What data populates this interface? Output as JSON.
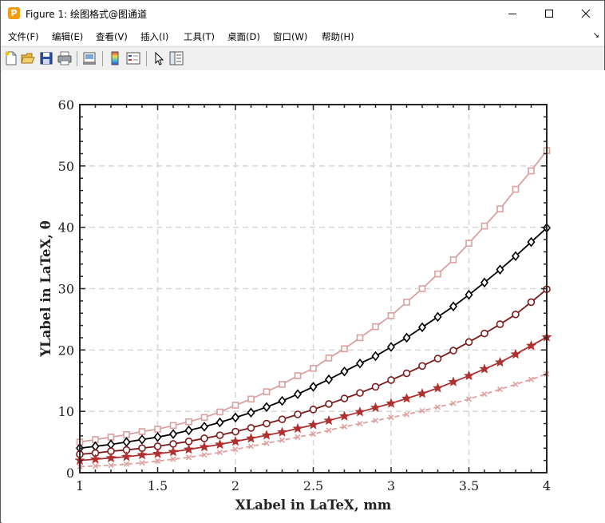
{
  "window": {
    "title": "Figure 1: 绘图格式@图通道",
    "app_icon_letter": "P"
  },
  "menu": {
    "items": [
      "文件(F)",
      "编辑(E)",
      "查看(V)",
      "插入(I)",
      "工具(T)",
      "桌面(D)",
      "窗口(W)",
      "帮助(H)"
    ],
    "overflow_arrow": "↘"
  },
  "toolbar": {
    "icons": [
      "new-figure-icon",
      "open-file-icon",
      "save-icon",
      "print-icon",
      "print-preview-icon",
      "colorbar-icon",
      "legend-icon",
      "pointer-icon",
      "property-editor-icon"
    ]
  },
  "chart_data": {
    "type": "line",
    "xlabel": "XLabel in LaTeX, mm",
    "ylabel": "YLabel in LaTeX, θ",
    "xlim": [
      1,
      4
    ],
    "ylim": [
      0,
      60
    ],
    "xticks": [
      "1",
      "1.5",
      "2",
      "2.5",
      "3",
      "3.5",
      "4"
    ],
    "yticks": [
      "0",
      "10",
      "20",
      "30",
      "40",
      "50",
      "60"
    ],
    "grid": true,
    "x": [
      1.0,
      1.1,
      1.2,
      1.3,
      1.4,
      1.5,
      1.6,
      1.7,
      1.8,
      1.9,
      2.0,
      2.1,
      2.2,
      2.3,
      2.4,
      2.5,
      2.6,
      2.7,
      2.8,
      2.9,
      3.0,
      3.1,
      3.2,
      3.3,
      3.4,
      3.5,
      3.6,
      3.7,
      3.8,
      3.9,
      4.0
    ],
    "series": [
      {
        "color": "#d9a0a0",
        "marker": "square",
        "line": "solid",
        "values": [
          5.0,
          5.4,
          5.8,
          6.2,
          6.7,
          7.1,
          7.7,
          8.3,
          9.0,
          9.9,
          11.0,
          12.0,
          13.2,
          14.4,
          15.8,
          17.0,
          18.7,
          20.2,
          22.0,
          23.8,
          25.6,
          27.8,
          30.0,
          32.4,
          34.7,
          37.4,
          40.2,
          43.0,
          46.2,
          49.2,
          52.5
        ]
      },
      {
        "color": "#000000",
        "marker": "diamond",
        "line": "solid",
        "values": [
          4.0,
          4.3,
          4.6,
          5.0,
          5.4,
          5.8,
          6.3,
          6.9,
          7.5,
          8.2,
          9.0,
          9.8,
          10.7,
          11.7,
          12.8,
          14.0,
          15.2,
          16.5,
          17.8,
          19.0,
          20.5,
          22.0,
          23.7,
          25.4,
          27.1,
          29.0,
          31.0,
          33.1,
          35.3,
          37.6,
          39.9
        ]
      },
      {
        "color": "#7a1a1a",
        "marker": "circle",
        "line": "solid",
        "values": [
          3.0,
          3.2,
          3.5,
          3.7,
          4.0,
          4.3,
          4.7,
          5.1,
          5.6,
          6.1,
          6.7,
          7.3,
          8.0,
          8.7,
          9.5,
          10.3,
          11.2,
          12.1,
          13.0,
          14.0,
          15.1,
          16.2,
          17.4,
          18.6,
          19.9,
          21.3,
          22.7,
          24.2,
          25.8,
          27.8,
          29.9
        ]
      },
      {
        "color": "#b03030",
        "marker": "star",
        "line": "solid",
        "values": [
          2.0,
          2.2,
          2.4,
          2.6,
          2.9,
          3.1,
          3.4,
          3.8,
          4.2,
          4.6,
          5.1,
          5.6,
          6.1,
          6.6,
          7.2,
          7.8,
          8.5,
          9.2,
          9.9,
          10.6,
          11.3,
          12.1,
          12.9,
          13.8,
          14.8,
          15.8,
          16.9,
          18.0,
          19.3,
          20.7,
          22.1
        ]
      },
      {
        "color": "#e0a0a0",
        "marker": "x",
        "line": "dashed",
        "values": [
          1.0,
          1.1,
          1.2,
          1.4,
          1.6,
          1.9,
          2.2,
          2.5,
          2.9,
          3.3,
          3.8,
          4.3,
          4.8,
          5.3,
          5.8,
          6.3,
          6.9,
          7.5,
          8.0,
          8.5,
          9.0,
          9.5,
          10.1,
          10.7,
          11.3,
          12.0,
          12.8,
          13.6,
          14.4,
          15.2,
          16.1
        ]
      }
    ]
  }
}
